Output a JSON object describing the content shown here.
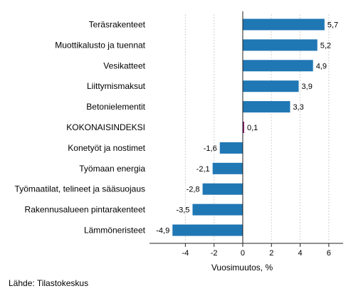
{
  "chart_data": {
    "type": "bar",
    "orientation": "horizontal",
    "categories": [
      "Teräsrakenteet",
      "Muottikalusto ja tuennat",
      "Vesikatteet",
      "Liittymismaksut",
      "Betonielementit",
      "KOKONAISINDEKSI",
      "Konetyöt ja nostimet",
      "Työmaan energia",
      "Työmaatilat, telineet ja sääsuojaus",
      "Rakennusalueen pintarakenteet",
      "Lämmöneristeet"
    ],
    "values": [
      5.7,
      5.2,
      4.9,
      3.9,
      3.3,
      0.1,
      -1.6,
      -2.1,
      -2.8,
      -3.5,
      -4.9
    ],
    "value_labels": [
      "5,7",
      "5,2",
      "4,9",
      "3,9",
      "3,3",
      "0,1",
      "-1,6",
      "-2,1",
      "-2,8",
      "-3,5",
      "-4,9"
    ],
    "xlabel": "Vuosimuutos, %",
    "xlim": [
      -6.5,
      7
    ],
    "xticks": [
      -4,
      -2,
      0,
      2,
      4,
      6
    ],
    "xtick_labels": [
      "-4",
      "-2",
      "0",
      "2",
      "4",
      "6"
    ],
    "grid": true,
    "colors": {
      "bar": "#1f77b4",
      "highlight": "#8b1a6e",
      "grid": "#d0d0d0",
      "axis": "#222222"
    },
    "highlight_category": "KOKONAISINDEKSI"
  },
  "source": "Lähde: Tilastokeskus"
}
